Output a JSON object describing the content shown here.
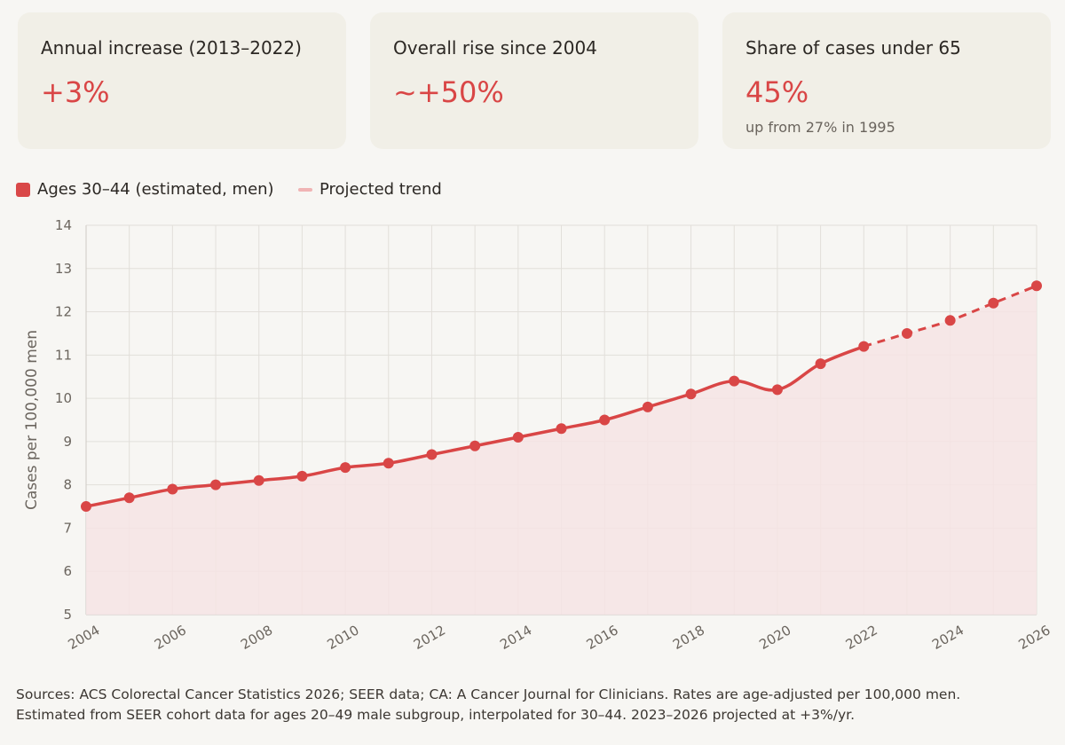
{
  "cards": [
    {
      "label": "Annual increase (2013–2022)",
      "value": "+3%",
      "sub": ""
    },
    {
      "label": "Overall rise since 2004",
      "value": "~+50%",
      "sub": ""
    },
    {
      "label": "Share of cases under 65",
      "value": "45%",
      "sub": "up from 27% in 1995"
    }
  ],
  "legend": {
    "actual": "Ages 30–44 (estimated, men)",
    "projected": "Projected trend"
  },
  "chart_data": {
    "type": "line",
    "ylabel": "Cases per 100,000 men",
    "xlabel": "",
    "ylim": [
      5,
      14
    ],
    "xlim": [
      2004,
      2026
    ],
    "y_ticks": [
      5,
      6,
      7,
      8,
      9,
      10,
      11,
      12,
      13,
      14
    ],
    "x_ticks": [
      "2004",
      "2006",
      "2008",
      "2010",
      "2012",
      "2014",
      "2016",
      "2018",
      "2020",
      "2022",
      "2024",
      "2026"
    ],
    "grid": true,
    "legend_position": "top-left",
    "colors": {
      "line": "#d94646",
      "area": "#f6e4e4",
      "projected_swatch": "#f0b4b4"
    },
    "series": [
      {
        "name": "Ages 30–44 (estimated, men)",
        "x": [
          2004,
          2005,
          2006,
          2007,
          2008,
          2009,
          2010,
          2011,
          2012,
          2013,
          2014,
          2015,
          2016,
          2017,
          2018,
          2019,
          2020,
          2021,
          2022
        ],
        "values": [
          7.5,
          7.7,
          7.9,
          8.0,
          8.1,
          8.2,
          8.4,
          8.5,
          8.7,
          8.9,
          9.1,
          9.3,
          9.5,
          9.8,
          10.1,
          10.4,
          10.2,
          10.8,
          11.2
        ]
      },
      {
        "name": "Projected trend",
        "style": "dashed",
        "x": [
          2022,
          2023,
          2024,
          2025,
          2026
        ],
        "values": [
          11.2,
          11.5,
          11.8,
          12.2,
          12.6
        ]
      }
    ]
  },
  "footnote": {
    "line1": "Sources: ACS Colorectal Cancer Statistics 2026; SEER data; CA: A Cancer Journal for Clinicians. Rates are age-adjusted per 100,000 men.",
    "line2": "Estimated from SEER cohort data for ages 20–49 male subgroup, interpolated for 30–44. 2023–2026 projected at +3%/yr."
  }
}
